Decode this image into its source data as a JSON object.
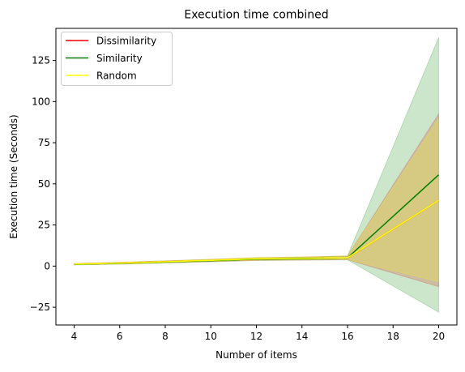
{
  "chart_data": {
    "type": "line",
    "title": "Execution time combined",
    "xlabel": "Number of items",
    "ylabel": "Execution time (Seconds)",
    "xlim": [
      3.2,
      20.8
    ],
    "ylim": [
      -35.8,
      144.5
    ],
    "xticks": [
      4,
      6,
      8,
      10,
      12,
      14,
      16,
      18,
      20
    ],
    "yticks": [
      -25,
      0,
      25,
      50,
      75,
      100,
      125
    ],
    "grid": false,
    "legend_position": "top-left",
    "x": [
      4,
      6,
      8,
      10,
      12,
      14,
      16,
      20
    ],
    "series": [
      {
        "name": "Dissimilarity",
        "color": "#ff0000",
        "values": [
          1.2,
          1.8,
          2.6,
          3.4,
          4.3,
          4.6,
          5.0,
          40.0
        ],
        "lower": [
          0.8,
          1.3,
          2.0,
          2.7,
          3.5,
          3.7,
          3.9,
          -12.5
        ],
        "upper": [
          1.6,
          2.3,
          3.2,
          4.1,
          5.1,
          5.5,
          6.1,
          92.5
        ]
      },
      {
        "name": "Similarity",
        "color": "#008000",
        "values": [
          1.1,
          1.7,
          2.5,
          3.3,
          4.2,
          4.5,
          5.0,
          55.5
        ],
        "lower": [
          0.7,
          1.2,
          1.9,
          2.6,
          3.4,
          3.6,
          3.8,
          -28.0
        ],
        "upper": [
          1.5,
          2.2,
          3.1,
          4.0,
          5.0,
          5.4,
          6.2,
          139.0
        ]
      },
      {
        "name": "Random",
        "color": "#ffff00",
        "values": [
          1.2,
          1.8,
          2.6,
          3.5,
          4.4,
          4.7,
          5.1,
          40.0
        ],
        "lower": [
          0.8,
          1.3,
          2.0,
          2.8,
          3.6,
          3.8,
          4.0,
          -9.5
        ],
        "upper": [
          1.6,
          2.3,
          3.2,
          4.2,
          5.2,
          5.6,
          6.2,
          89.5
        ]
      }
    ],
    "band_colors": [
      "#ff0000",
      "#008000",
      "#ffff00"
    ],
    "band_opacity": 0.2
  }
}
